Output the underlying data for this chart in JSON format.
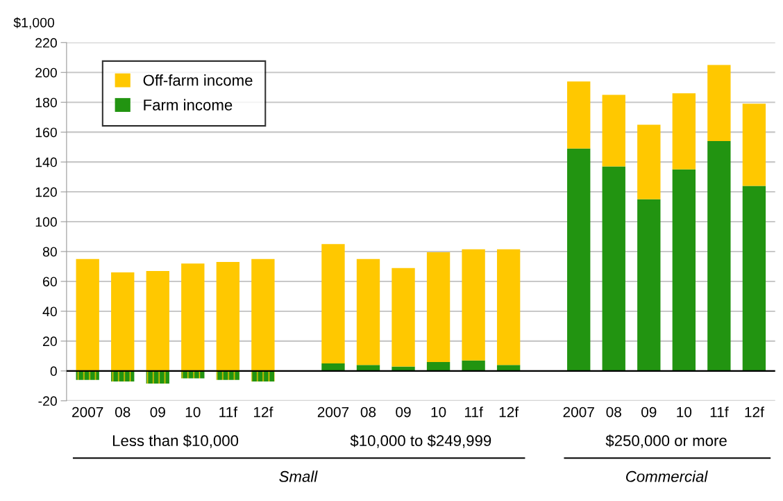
{
  "chart_data": {
    "type": "bar",
    "stacked": true,
    "ylabel": "$1,000",
    "categories": [
      "2007",
      "08",
      "09",
      "10",
      "11f",
      "12f",
      null,
      "2007",
      "08",
      "09",
      "10",
      "11f",
      "12f",
      null,
      "2007",
      "08",
      "09",
      "10",
      "11f",
      "12f"
    ],
    "series": [
      {
        "name": "Farm income",
        "color": "#229411",
        "values": [
          -6,
          -7,
          -8.5,
          -5,
          -6,
          -7,
          null,
          5,
          4,
          3,
          6,
          7,
          4,
          null,
          149,
          137,
          115,
          135,
          154,
          124
        ]
      },
      {
        "name": "Off-farm income",
        "color": "#ffc800",
        "values": [
          75,
          66,
          67,
          72,
          73,
          75,
          null,
          80,
          71,
          66,
          73.5,
          74.5,
          77.5,
          null,
          45,
          48,
          50,
          51,
          51,
          55
        ]
      }
    ],
    "ylim": [
      -20,
      220
    ],
    "yticks": [
      -20,
      0,
      20,
      40,
      60,
      80,
      100,
      120,
      140,
      160,
      180,
      200,
      220
    ],
    "grid": "y",
    "legend": "top left",
    "annotations": [
      "Less than $10,000",
      "$10,000 to $249,999",
      "$250,000 or more",
      "Small",
      "Commercial"
    ]
  }
}
